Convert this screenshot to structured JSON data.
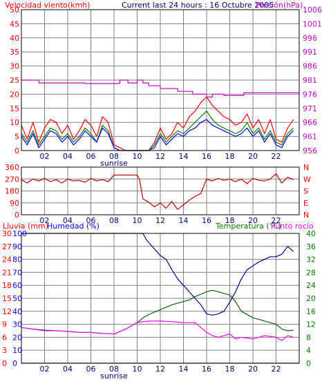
{
  "chart_data": [
    {
      "type": "line",
      "header": {
        "left_title": "Velocidad viento(kmh)",
        "center_title": "Current last 24 hours : 16 Octubre 2005",
        "right_title": "Presión(hPa)"
      },
      "x_ticks": [
        "02",
        "04",
        "06",
        "08",
        "10",
        "12",
        "14",
        "16",
        "18",
        "20",
        "22"
      ],
      "x_sublabel": "sunrise",
      "y_left": {
        "ticks": [
          0,
          5,
          10,
          15,
          20,
          25,
          30,
          35,
          40,
          45,
          50
        ],
        "ylim": [
          0,
          50
        ]
      },
      "y_right": {
        "ticks": [
          956,
          961,
          966,
          971,
          976,
          981,
          986,
          991,
          996,
          1001,
          1006
        ],
        "ylim": [
          956,
          1006
        ]
      },
      "grid": true,
      "colors": {
        "gust": "#ff0000",
        "speed": "#0000ff",
        "avg": "#008000",
        "pressure": "#cc00cc",
        "left_axis": "#ff0000",
        "right_axis": "#cc00cc"
      },
      "series": [
        {
          "axis": "right",
          "x": [
            0,
            1.5,
            1.5,
            5.5,
            5.5,
            8.5,
            8.5,
            9.2,
            9.2,
            10,
            10,
            10.5,
            10.5,
            11,
            11,
            12,
            12,
            13.5,
            13.5,
            14.8,
            14.8,
            16,
            16,
            16.5,
            16.5,
            17.5,
            17.5,
            19.2,
            19.2,
            24
          ],
          "values": [
            981,
            981,
            980,
            980,
            979.8,
            979.8,
            981,
            981,
            980,
            980,
            981,
            981,
            980,
            980,
            979,
            979,
            978,
            978,
            977,
            977,
            976,
            976,
            975,
            975,
            976,
            976,
            975.5,
            975.5,
            976.5,
            976.5
          ]
        },
        {
          "axis": "left",
          "x": [
            0,
            0.5,
            1,
            1.5,
            2,
            2.5,
            3,
            3.5,
            4,
            4.5,
            5,
            5.5,
            6,
            6.5,
            7,
            7.5,
            8,
            8.5,
            9,
            9.5,
            10,
            10.5,
            11,
            11.5,
            12,
            12.5,
            13,
            13.5,
            14,
            14.5,
            15,
            15.5,
            16,
            16.5,
            17,
            17.5,
            18,
            18.5,
            19,
            19.5,
            20,
            20.5,
            21,
            21.5,
            22,
            22.5,
            23,
            23.5
          ],
          "values": [
            9,
            4,
            10,
            3,
            8,
            11,
            10,
            6,
            9,
            4,
            7,
            11,
            9,
            5,
            12,
            10,
            2,
            1,
            0,
            0,
            0,
            0,
            0,
            3,
            8,
            4,
            6,
            10,
            8,
            12,
            14,
            17,
            19,
            16,
            14,
            12,
            11,
            9,
            10,
            13,
            8,
            11,
            6,
            11,
            4,
            3,
            8,
            11
          ]
        },
        {
          "axis": "left",
          "x": [
            0,
            0.5,
            1,
            1.5,
            2,
            2.5,
            3,
            3.5,
            4,
            4.5,
            5,
            5.5,
            6,
            6.5,
            7,
            7.5,
            8,
            8.5,
            9,
            9.5,
            10,
            10.5,
            11,
            11.5,
            12,
            12.5,
            13,
            13.5,
            14,
            14.5,
            15,
            15.5,
            16,
            16.5,
            17,
            17.5,
            18,
            18.5,
            19,
            19.5,
            20,
            20.5,
            21,
            21.5,
            22,
            22.5,
            23,
            23.5
          ],
          "values": [
            5,
            2,
            6,
            1,
            4,
            7,
            6,
            3,
            5,
            2,
            4,
            7,
            5,
            3,
            8,
            6,
            1,
            0,
            0,
            0,
            0,
            0,
            0,
            1,
            5,
            2,
            4,
            6,
            5,
            7,
            8,
            10,
            11,
            9,
            8,
            7,
            6,
            5,
            6,
            8,
            5,
            7,
            3,
            6,
            2,
            1,
            5,
            7
          ]
        },
        {
          "axis": "left",
          "x": [
            0,
            0.5,
            1,
            1.5,
            2,
            2.5,
            3,
            3.5,
            4,
            4.5,
            5,
            5.5,
            6,
            6.5,
            7,
            7.5,
            8,
            8.5,
            9,
            9.5,
            10,
            10.5,
            11,
            11.5,
            12,
            12.5,
            13,
            13.5,
            14,
            14.5,
            15,
            15.5,
            16,
            16.5,
            17,
            17.5,
            18,
            18.5,
            19,
            19.5,
            20,
            20.5,
            21,
            21.5,
            22,
            22.5,
            23,
            23.5
          ],
          "values": [
            6,
            3,
            7,
            2,
            5,
            8,
            7,
            4,
            6,
            3,
            5,
            8,
            6,
            3,
            9,
            7,
            1,
            0,
            0,
            0,
            0,
            0,
            0,
            2,
            6,
            3,
            5,
            7,
            6,
            8,
            10,
            12,
            14,
            11,
            9,
            8,
            7,
            6,
            7,
            10,
            6,
            8,
            4,
            7,
            3,
            2,
            6,
            8
          ]
        }
      ]
    },
    {
      "type": "line",
      "x_ticks": [
        "02",
        "04",
        "06",
        "08",
        "10",
        "12",
        "14",
        "16",
        "18",
        "20",
        "22"
      ],
      "y_left": {
        "ticks": [
          0,
          90,
          180,
          270,
          360
        ],
        "ylim": [
          0,
          360
        ]
      },
      "y_right": {
        "ticks": [
          "N",
          "W",
          "S",
          "E",
          "N"
        ]
      },
      "grid": true,
      "colors": {
        "direction": "#cc0000",
        "axis": "#ff0000"
      },
      "series": [
        {
          "x": [
            0,
            0.5,
            1,
            1.5,
            2,
            2.5,
            3,
            3.5,
            4,
            4.5,
            5,
            5.5,
            6,
            6.5,
            7,
            7.5,
            8,
            8.5,
            9,
            9.5,
            10,
            10.2,
            10.5,
            11,
            11.5,
            12,
            12.5,
            13,
            13.5,
            14,
            14.5,
            15,
            15.5,
            16,
            16.5,
            17,
            17.5,
            18,
            18.5,
            19,
            19.5,
            20,
            20.5,
            21,
            21.5,
            22,
            22.5,
            23,
            23.5
          ],
          "values": [
            265,
            240,
            270,
            255,
            275,
            250,
            265,
            240,
            270,
            255,
            260,
            245,
            275,
            255,
            265,
            250,
            300,
            300,
            300,
            300,
            300,
            270,
            120,
            95,
            60,
            90,
            50,
            100,
            40,
            75,
            110,
            140,
            160,
            270,
            255,
            275,
            260,
            270,
            250,
            270,
            235,
            275,
            260,
            255,
            270,
            310,
            240,
            285,
            265
          ]
        }
      ]
    },
    {
      "type": "line",
      "header": {
        "rain_title": "Lluvia (mm)",
        "humidity_title": "Humedad (%)",
        "temperature_title": "Temperatura (°C)",
        "dewpoint_title": "Punto rocío"
      },
      "x_ticks": [
        "02",
        "04",
        "06",
        "08",
        "10",
        "12",
        "14",
        "16",
        "18",
        "20",
        "22"
      ],
      "x_sublabel": "sunrise",
      "y_rain": {
        "ticks": [
          0,
          3,
          6,
          9,
          12,
          15,
          18,
          21,
          24,
          27,
          30
        ],
        "ylim": [
          0,
          30
        ]
      },
      "y_humidity": {
        "ticks": [
          0,
          10,
          20,
          30,
          40,
          50,
          60,
          70,
          80,
          90,
          100
        ],
        "ylim": [
          0,
          100
        ]
      },
      "y_temp_left": {
        "ticks": [
          0,
          4,
          8,
          12,
          16,
          20,
          24,
          28,
          32,
          36,
          40
        ],
        "ylim": [
          0,
          40
        ]
      },
      "y_temp_right": {
        "ticks": [
          0,
          4,
          8,
          12,
          16,
          20,
          24,
          28,
          32,
          36,
          40
        ],
        "ylim": [
          0,
          40
        ]
      },
      "grid": true,
      "colors": {
        "rain": "#ff0000",
        "humidity": "#000099",
        "temperature": "#006600",
        "dewpoint": "#ff00ff",
        "rain_axis": "#ff0000",
        "humidity_axis": "#0000ff",
        "temp_axis": "#008000"
      },
      "series": [
        {
          "axis": "rain",
          "x": [
            0,
            24
          ],
          "values": [
            0,
            0
          ]
        },
        {
          "axis": "humidity",
          "x": [
            0,
            10.5,
            10.8,
            11.5,
            12,
            12.5,
            13,
            13.5,
            14,
            14.5,
            15,
            15.5,
            16,
            16.5,
            17,
            17.5,
            18,
            18.5,
            19,
            19.5,
            20,
            20.5,
            21,
            21.5,
            22,
            22.5,
            23,
            23.5
          ],
          "values": [
            100,
            100,
            95,
            88,
            83,
            80,
            72,
            65,
            60,
            55,
            50,
            45,
            38,
            37,
            38,
            40,
            47,
            55,
            65,
            72,
            75,
            78,
            80,
            82,
            82,
            84,
            90,
            86
          ]
        },
        {
          "axis": "temperature",
          "x": [
            0,
            1,
            2,
            3,
            4,
            5,
            6,
            7,
            8,
            9,
            10,
            10.5,
            11,
            12,
            13,
            14,
            14.5,
            15,
            16,
            16.5,
            17,
            17.5,
            18,
            18.5,
            19,
            20,
            21,
            22,
            22.5,
            23,
            23.5
          ],
          "values": [
            11,
            10.5,
            10.2,
            10,
            9.8,
            9.5,
            9.5,
            9.2,
            9,
            10.5,
            12.5,
            14,
            15,
            16.5,
            18,
            19,
            19.5,
            20.5,
            22,
            22.5,
            22,
            21.5,
            21,
            19,
            16,
            14,
            13,
            12,
            10.5,
            10,
            10.2
          ]
        },
        {
          "axis": "temperature",
          "x": [
            0,
            1,
            2,
            3,
            4,
            5,
            6,
            7,
            8,
            9,
            10,
            10.5,
            11,
            12,
            13,
            14,
            15,
            15.5,
            16,
            16.5,
            17,
            17.5,
            18,
            18.5,
            19,
            20,
            21,
            22,
            22.5,
            23,
            23.5
          ],
          "values": [
            11,
            10.5,
            10,
            10,
            9.8,
            9.5,
            9.5,
            9.2,
            9,
            10.5,
            12.5,
            12.8,
            13,
            13,
            12.8,
            12.5,
            12.5,
            11,
            9.5,
            8.5,
            8,
            8.5,
            9,
            7.5,
            8,
            7.5,
            8.5,
            8,
            7,
            8.5,
            8
          ]
        }
      ]
    }
  ]
}
